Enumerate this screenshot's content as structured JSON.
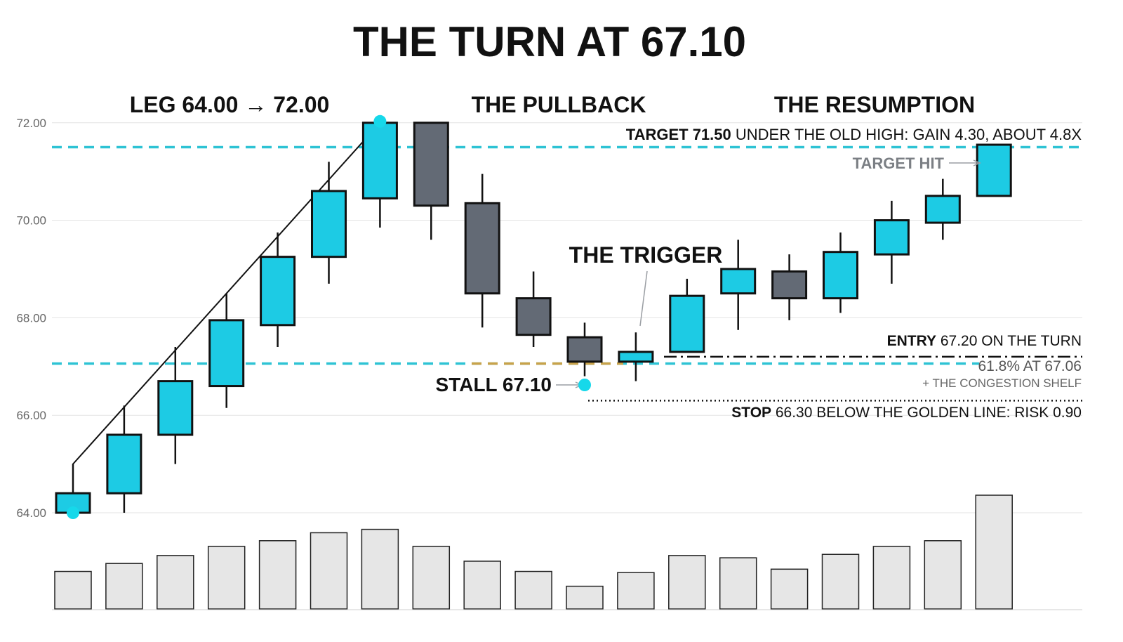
{
  "chart_data": {
    "type": "candlestick",
    "title": "THE TURN AT 67.10",
    "y_ticks": [
      "72.00",
      "70.00",
      "68.00",
      "66.00",
      "64.00"
    ],
    "ylim": [
      63.6,
      72.4
    ],
    "grid": true,
    "section_labels": [
      "LEG 64.00 → 72.00",
      "THE PULLBACK",
      "THE RESUMPTION"
    ],
    "candles": [
      {
        "open": 64.0,
        "high": 65.0,
        "low": 64.0,
        "close": 64.4,
        "volume": 33
      },
      {
        "open": 64.4,
        "high": 66.2,
        "low": 64.0,
        "close": 65.6,
        "volume": 40
      },
      {
        "open": 65.6,
        "high": 67.4,
        "low": 65.0,
        "close": 66.7,
        "volume": 47
      },
      {
        "open": 66.6,
        "high": 68.5,
        "low": 66.15,
        "close": 67.95,
        "volume": 55
      },
      {
        "open": 67.85,
        "high": 69.75,
        "low": 67.4,
        "close": 69.25,
        "volume": 60
      },
      {
        "open": 69.25,
        "high": 71.2,
        "low": 68.7,
        "close": 70.6,
        "volume": 67
      },
      {
        "open": 70.45,
        "high": 72.0,
        "low": 69.85,
        "close": 72.0,
        "volume": 70
      },
      {
        "open": 72.0,
        "high": 72.0,
        "low": 69.6,
        "close": 70.3,
        "volume": 55
      },
      {
        "open": 70.35,
        "high": 70.95,
        "low": 67.8,
        "close": 68.5,
        "volume": 42
      },
      {
        "open": 68.4,
        "high": 68.95,
        "low": 67.4,
        "close": 67.65,
        "volume": 33
      },
      {
        "open": 67.6,
        "high": 67.9,
        "low": 66.8,
        "close": 67.1,
        "volume": 20
      },
      {
        "open": 67.1,
        "high": 67.7,
        "low": 66.7,
        "close": 67.3,
        "volume": 32
      },
      {
        "open": 67.3,
        "high": 68.8,
        "low": 67.3,
        "close": 68.45,
        "volume": 47
      },
      {
        "open": 68.5,
        "high": 69.6,
        "low": 67.75,
        "close": 69.0,
        "volume": 45
      },
      {
        "open": 68.95,
        "high": 69.3,
        "low": 67.95,
        "close": 68.4,
        "volume": 35
      },
      {
        "open": 68.4,
        "high": 69.75,
        "low": 68.1,
        "close": 69.35,
        "volume": 48
      },
      {
        "open": 69.3,
        "high": 70.4,
        "low": 68.7,
        "close": 70.0,
        "volume": 55
      },
      {
        "open": 69.95,
        "high": 70.85,
        "low": 69.6,
        "close": 70.5,
        "volume": 60
      },
      {
        "open": 70.5,
        "high": 71.55,
        "low": 70.5,
        "close": 71.55,
        "volume": 100
      }
    ],
    "levels": {
      "target": 71.5,
      "fib_618": 67.06,
      "entry": 67.2,
      "stop": 66.3,
      "stall": 67.1
    },
    "leg": {
      "from": 64.0,
      "to": 72.0
    },
    "annotations": {
      "target_bold": "TARGET 71.50",
      "target_rest": " UNDER THE OLD HIGH: GAIN 4.30, ABOUT 4.8X",
      "target_hit": "TARGET HIT",
      "trigger": "THE TRIGGER",
      "stall": "STALL 67.10",
      "entry_bold": "ENTRY",
      "entry_rest": " 67.20 ON THE TURN",
      "fib": "61.8% AT 67.06",
      "shelf": "+ THE CONGESTION SHELF",
      "stop_bold": "STOP",
      "stop_rest": " 66.30 BELOW THE GOLDEN LINE: RISK 0.90"
    },
    "colors": {
      "up": "#1dcbe4",
      "down": "#636a75",
      "outline": "#111111",
      "cyan_line": "#2ec3d4",
      "gold": "#c9a24a",
      "grid": "#e3e3e3",
      "volume_fill": "#e6e6e6",
      "muted_text": "#6f7378"
    }
  }
}
